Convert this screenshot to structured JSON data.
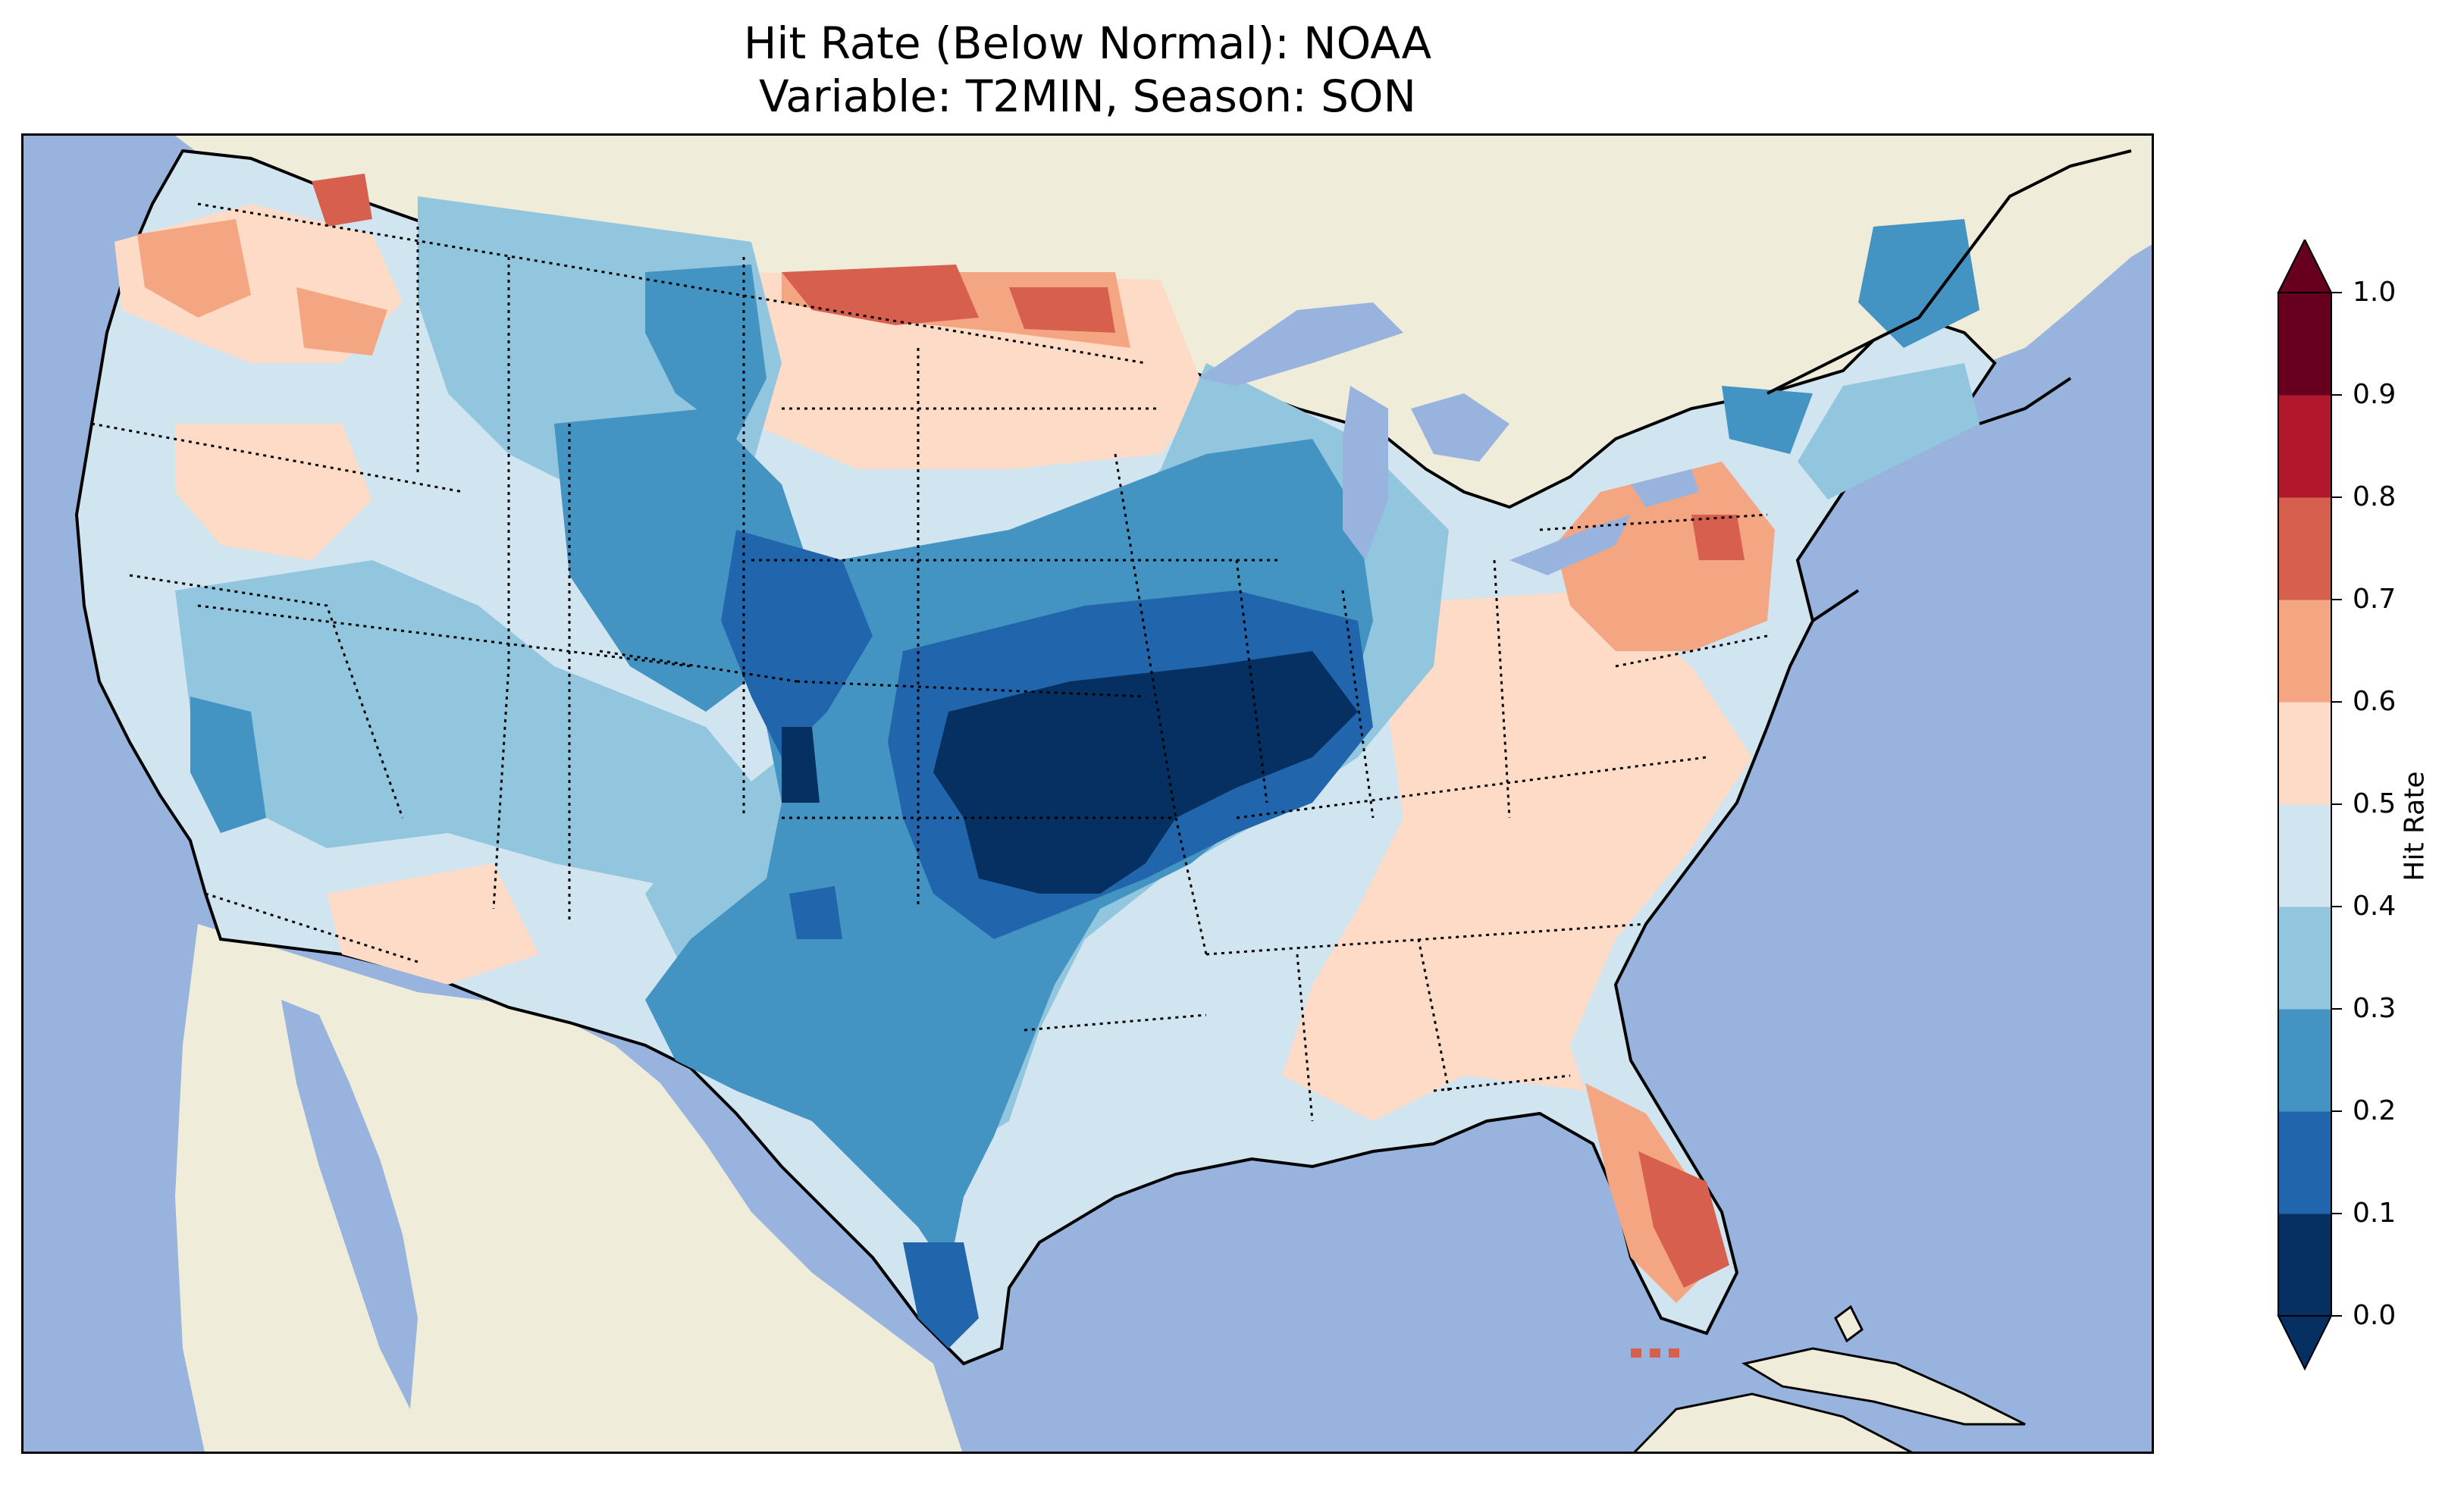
{
  "title": {
    "line1": "Hit Rate (Below Normal): NOAA",
    "line2": "Variable: T2MIN, Season: SON"
  },
  "map": {
    "projection": "Lambert conformal, contiguous United States",
    "background": {
      "ocean": "#98b3dd",
      "land": "#efedda"
    },
    "state_borders": "dotted",
    "coastlines": "solid black"
  },
  "colorbar": {
    "label": "Hit Rate",
    "extend": "both",
    "ticks": [
      "0.0",
      "0.1",
      "0.2",
      "0.3",
      "0.4",
      "0.5",
      "0.6",
      "0.7",
      "0.8",
      "0.9",
      "1.0"
    ],
    "bins": [
      {
        "range": [
          0.0,
          0.1
        ],
        "color": "#053061"
      },
      {
        "range": [
          0.1,
          0.2
        ],
        "color": "#2166ac"
      },
      {
        "range": [
          0.2,
          0.3
        ],
        "color": "#4393c3"
      },
      {
        "range": [
          0.3,
          0.4
        ],
        "color": "#92c5de"
      },
      {
        "range": [
          0.4,
          0.5
        ],
        "color": "#d1e5f0"
      },
      {
        "range": [
          0.5,
          0.6
        ],
        "color": "#fddbc7"
      },
      {
        "range": [
          0.6,
          0.7
        ],
        "color": "#f4a582"
      },
      {
        "range": [
          0.7,
          0.8
        ],
        "color": "#d6604d"
      },
      {
        "range": [
          0.8,
          0.9
        ],
        "color": "#b2182b"
      },
      {
        "range": [
          0.9,
          1.0
        ],
        "color": "#67001f"
      }
    ]
  },
  "regions": [
    {
      "name": "West Coast (OR/N. CA)",
      "hit_rate_bin": [
        0.5,
        0.6
      ],
      "color": "#fddbc7"
    },
    {
      "name": "Central Plains (KS/MO/NE)",
      "hit_rate_bin": [
        0.0,
        0.1
      ],
      "color": "#053061"
    },
    {
      "name": "Upper Midwest (IA/MN/WI)",
      "hit_rate_bin": [
        0.2,
        0.3
      ],
      "color": "#4393c3"
    },
    {
      "name": "Texas",
      "hit_rate_bin": [
        0.2,
        0.3
      ],
      "color": "#4393c3"
    },
    {
      "name": "Southern Florida",
      "hit_rate_bin": [
        0.7,
        0.8
      ],
      "color": "#d6604d"
    },
    {
      "name": "Pennsylvania / Mid-Atlantic",
      "hit_rate_bin": [
        0.6,
        0.7
      ],
      "color": "#f4a582"
    },
    {
      "name": "North Dakota border",
      "hit_rate_bin": [
        0.7,
        0.8
      ],
      "color": "#d6604d"
    }
  ]
}
